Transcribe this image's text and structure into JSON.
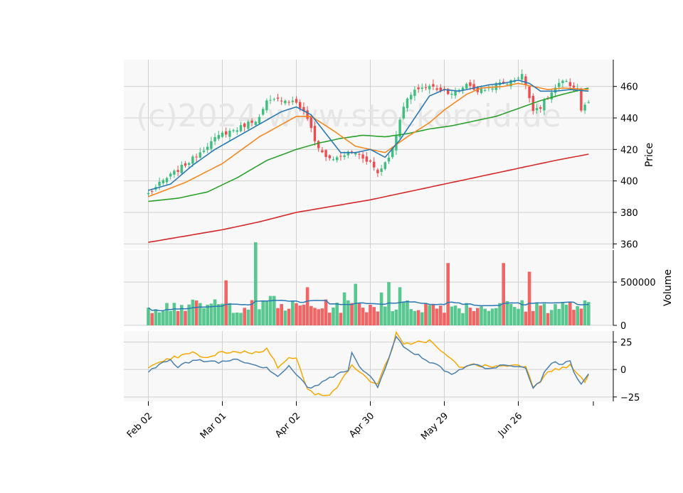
{
  "watermark": "(c)2024 www.stockoroid.de",
  "colors": {
    "panel_bg": "#f8f8f8",
    "grid": "#d0d0d0",
    "up": "#3dbf7e",
    "down": "#f04b4b",
    "ma_fast": "#2a78b4",
    "ma_mid": "#f5871f",
    "ma_slow": "#2ca02c",
    "ma_long": "#d62728",
    "vol_ma": "#2a78b4",
    "osc_a": "#4a7fb0",
    "osc_b": "#f5a800",
    "watermark": "#e6e6e6"
  },
  "chart_data": {
    "type": "candlestick",
    "x_tick_labels": [
      "Feb 02",
      "Mar 01",
      "Apr 02",
      "Apr 30",
      "May 29",
      "Jun 26"
    ],
    "x_tick_index": [
      0,
      20,
      40,
      60,
      80,
      100
    ],
    "n_bars": 120,
    "price_panel": {
      "ylabel": "Price",
      "yticks": [
        360,
        380,
        400,
        420,
        440,
        460
      ],
      "ylim": [
        357,
        477
      ],
      "close_anchors": [
        [
          0,
          392
        ],
        [
          4,
          400
        ],
        [
          8,
          407
        ],
        [
          12,
          414
        ],
        [
          16,
          423
        ],
        [
          20,
          430
        ],
        [
          24,
          433
        ],
        [
          28,
          438
        ],
        [
          30,
          440
        ],
        [
          32,
          450
        ],
        [
          36,
          452
        ],
        [
          40,
          450
        ],
        [
          43,
          440
        ],
        [
          45,
          425
        ],
        [
          48,
          415
        ],
        [
          51,
          414
        ],
        [
          54,
          418
        ],
        [
          56,
          418
        ],
        [
          60,
          412
        ],
        [
          62,
          405
        ],
        [
          64,
          412
        ],
        [
          66,
          420
        ],
        [
          68,
          440
        ],
        [
          70,
          452
        ],
        [
          73,
          459
        ],
        [
          76,
          460
        ],
        [
          79,
          458
        ],
        [
          82,
          456
        ],
        [
          84,
          457
        ],
        [
          86,
          462
        ],
        [
          89,
          457
        ],
        [
          92,
          459
        ],
        [
          95,
          462
        ],
        [
          98,
          463
        ],
        [
          101,
          468
        ],
        [
          102,
          460
        ],
        [
          104,
          446
        ],
        [
          106,
          447
        ],
        [
          108,
          453
        ],
        [
          110,
          459
        ],
        [
          112,
          463
        ],
        [
          114,
          461
        ],
        [
          116,
          459
        ],
        [
          117,
          445
        ],
        [
          119,
          450
        ]
      ],
      "ma_fast_anchors": [
        [
          0,
          394
        ],
        [
          6,
          398
        ],
        [
          12,
          410
        ],
        [
          18,
          420
        ],
        [
          24,
          428
        ],
        [
          30,
          436
        ],
        [
          36,
          444
        ],
        [
          40,
          447
        ],
        [
          44,
          442
        ],
        [
          48,
          430
        ],
        [
          52,
          418
        ],
        [
          56,
          418
        ],
        [
          60,
          420
        ],
        [
          64,
          415
        ],
        [
          68,
          426
        ],
        [
          72,
          440
        ],
        [
          76,
          454
        ],
        [
          80,
          458
        ],
        [
          84,
          457
        ],
        [
          88,
          459
        ],
        [
          92,
          461
        ],
        [
          96,
          462
        ],
        [
          100,
          464
        ],
        [
          103,
          462
        ],
        [
          106,
          457
        ],
        [
          110,
          457
        ],
        [
          114,
          458
        ],
        [
          119,
          457
        ]
      ],
      "ma_mid_anchors": [
        [
          0,
          390
        ],
        [
          10,
          399
        ],
        [
          20,
          411
        ],
        [
          30,
          428
        ],
        [
          40,
          441
        ],
        [
          44,
          441
        ],
        [
          50,
          432
        ],
        [
          56,
          422
        ],
        [
          60,
          420
        ],
        [
          64,
          418
        ],
        [
          70,
          428
        ],
        [
          76,
          437
        ],
        [
          80,
          445
        ],
        [
          86,
          455
        ],
        [
          90,
          459
        ],
        [
          96,
          460
        ],
        [
          100,
          462
        ],
        [
          104,
          460
        ],
        [
          108,
          458
        ],
        [
          112,
          459
        ],
        [
          119,
          458
        ]
      ],
      "ma_slow_anchors": [
        [
          0,
          387
        ],
        [
          8,
          389
        ],
        [
          16,
          393
        ],
        [
          24,
          402
        ],
        [
          32,
          413
        ],
        [
          40,
          420
        ],
        [
          46,
          424
        ],
        [
          52,
          427
        ],
        [
          58,
          429
        ],
        [
          64,
          428
        ],
        [
          70,
          430
        ],
        [
          76,
          433
        ],
        [
          82,
          435
        ],
        [
          88,
          438
        ],
        [
          94,
          441
        ],
        [
          100,
          446
        ],
        [
          106,
          451
        ],
        [
          112,
          455
        ],
        [
          119,
          459
        ]
      ],
      "ma_long_anchors": [
        [
          0,
          361
        ],
        [
          10,
          365
        ],
        [
          20,
          369
        ],
        [
          30,
          374
        ],
        [
          40,
          380
        ],
        [
          50,
          384
        ],
        [
          60,
          388
        ],
        [
          70,
          393
        ],
        [
          80,
          398
        ],
        [
          90,
          403
        ],
        [
          100,
          408
        ],
        [
          110,
          413
        ],
        [
          119,
          417
        ]
      ]
    },
    "volume_panel": {
      "ylabel": "Volume",
      "yticks": [
        0,
        500000
      ],
      "ytick_labels": [
        "0",
        "500000"
      ],
      "ylim": [
        0,
        870000
      ],
      "spikes": [
        [
          7,
          0.26
        ],
        [
          18,
          0.3
        ],
        [
          21,
          0.52
        ],
        [
          29,
          0.96
        ],
        [
          33,
          0.34
        ],
        [
          34,
          0.34
        ],
        [
          43,
          0.44
        ],
        [
          53,
          0.38
        ],
        [
          56,
          0.48
        ],
        [
          63,
          0.38
        ],
        [
          65,
          0.5
        ],
        [
          68,
          0.44
        ],
        [
          81,
          0.72
        ],
        [
          96,
          0.72
        ],
        [
          103,
          0.62
        ]
      ]
    },
    "oscillator_panel": {
      "yticks": [
        -25,
        0,
        25
      ],
      "ylim": [
        -29,
        35
      ],
      "series_a_anchors": [
        [
          0,
          -3
        ],
        [
          4,
          7
        ],
        [
          6,
          10
        ],
        [
          8,
          2
        ],
        [
          10,
          6
        ],
        [
          14,
          8
        ],
        [
          20,
          7
        ],
        [
          24,
          10
        ],
        [
          28,
          5
        ],
        [
          32,
          2
        ],
        [
          35,
          -6
        ],
        [
          38,
          3
        ],
        [
          40,
          -4
        ],
        [
          43,
          -17
        ],
        [
          46,
          -14
        ],
        [
          49,
          -8
        ],
        [
          52,
          -1
        ],
        [
          54,
          -1
        ],
        [
          55,
          15
        ],
        [
          57,
          2
        ],
        [
          60,
          -6
        ],
        [
          62,
          -15
        ],
        [
          64,
          2
        ],
        [
          66,
          20
        ],
        [
          67,
          30
        ],
        [
          69,
          20
        ],
        [
          72,
          15
        ],
        [
          76,
          7
        ],
        [
          78,
          5
        ],
        [
          80,
          -1
        ],
        [
          82,
          -3
        ],
        [
          86,
          3
        ],
        [
          88,
          5
        ],
        [
          92,
          0
        ],
        [
          96,
          5
        ],
        [
          98,
          2
        ],
        [
          100,
          3
        ],
        [
          102,
          1
        ],
        [
          104,
          -17
        ],
        [
          106,
          -10
        ],
        [
          108,
          3
        ],
        [
          110,
          6
        ],
        [
          112,
          4
        ],
        [
          114,
          8
        ],
        [
          115,
          -2
        ],
        [
          117,
          -12
        ],
        [
          119,
          -5
        ]
      ],
      "series_b_anchors": [
        [
          0,
          1
        ],
        [
          6,
          10
        ],
        [
          12,
          15
        ],
        [
          16,
          10
        ],
        [
          20,
          16
        ],
        [
          26,
          16
        ],
        [
          30,
          15
        ],
        [
          32,
          20
        ],
        [
          35,
          2
        ],
        [
          38,
          12
        ],
        [
          40,
          10
        ],
        [
          43,
          -18
        ],
        [
          45,
          -23
        ],
        [
          49,
          -22
        ],
        [
          52,
          -12
        ],
        [
          55,
          5
        ],
        [
          57,
          -3
        ],
        [
          60,
          -10
        ],
        [
          62,
          -14
        ],
        [
          64,
          5
        ],
        [
          66,
          18
        ],
        [
          67,
          33
        ],
        [
          69,
          22
        ],
        [
          72,
          25
        ],
        [
          76,
          26
        ],
        [
          78,
          20
        ],
        [
          80,
          14
        ],
        [
          84,
          3
        ],
        [
          88,
          4
        ],
        [
          92,
          3
        ],
        [
          96,
          3
        ],
        [
          100,
          5
        ],
        [
          102,
          2
        ],
        [
          104,
          -15
        ],
        [
          106,
          -10
        ],
        [
          108,
          -1
        ],
        [
          112,
          1
        ],
        [
          114,
          4
        ],
        [
          116,
          -4
        ],
        [
          118,
          -12
        ],
        [
          119,
          -4
        ]
      ]
    }
  }
}
